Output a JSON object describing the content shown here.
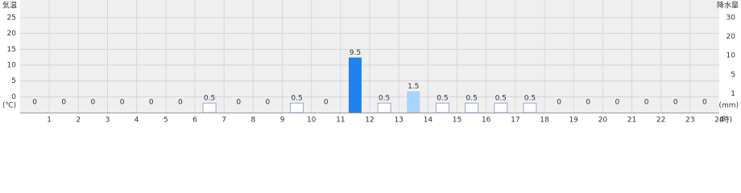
{
  "chart_data": {
    "type": "bar",
    "y_label": "気温",
    "y2_label": "降水量",
    "y_unit": "(℃)",
    "y2_unit": "(mm)",
    "x_unit": "(時)",
    "categories": [
      "1",
      "2",
      "3",
      "4",
      "5",
      "6",
      "7",
      "8",
      "9",
      "10",
      "11",
      "12",
      "13",
      "14",
      "15",
      "16",
      "17",
      "18",
      "19",
      "20",
      "21",
      "22",
      "23",
      "24"
    ],
    "series": [
      {
        "name": "降水量",
        "axis": "y2",
        "values": [
          0,
          0,
          0,
          0,
          0,
          0,
          0.5,
          0,
          0,
          0.5,
          0,
          9.5,
          0.5,
          1.5,
          0.5,
          0.5,
          0.5,
          0.5,
          0,
          0,
          0,
          0,
          0,
          0
        ],
        "colors": [
          "#ffffff",
          "#ffffff",
          "#ffffff",
          "#ffffff",
          "#ffffff",
          "#ffffff",
          "#ffffff",
          "#ffffff",
          "#ffffff",
          "#ffffff",
          "#ffffff",
          "#1e82f0",
          "#ffffff",
          "#a8d4ff",
          "#ffffff",
          "#ffffff",
          "#ffffff",
          "#ffffff",
          "#ffffff",
          "#ffffff",
          "#ffffff",
          "#ffffff",
          "#ffffff",
          "#ffffff"
        ]
      }
    ],
    "ylim": [
      -5,
      25
    ],
    "yticks": [
      0,
      5,
      10,
      15,
      20,
      25
    ],
    "y2lim": [
      0,
      30
    ],
    "y2ticks": [
      1,
      5,
      10,
      20,
      30
    ],
    "grid": true
  }
}
